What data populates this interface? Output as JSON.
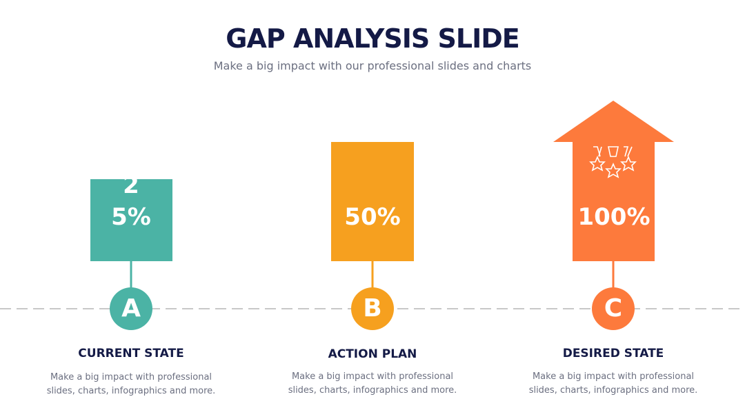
{
  "header": {
    "title": "GAP ANALYSIS SLIDE",
    "subtitle": "Make a big impact with our professional slides and charts"
  },
  "stages": [
    {
      "value": "25%",
      "letter": "A",
      "heading": "CURRENT STATE",
      "description": "Make a big impact with professional slides, charts, infographics and more."
    },
    {
      "value": "50%",
      "letter": "B",
      "heading": "ACTION PLAN",
      "description": "Make a big impact with professional slides, charts, infographics and more."
    },
    {
      "value": "100%",
      "letter": "C",
      "heading": "DESIRED STATE",
      "description": "Make a big impact with professional slides, charts, infographics and more."
    }
  ]
}
